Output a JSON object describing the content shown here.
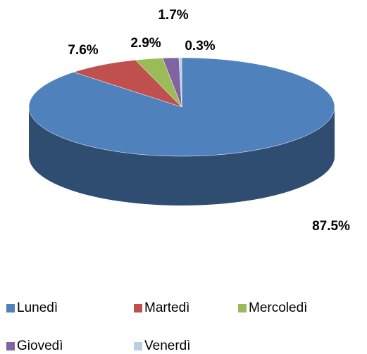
{
  "chart_data": {
    "type": "pie",
    "categories": [
      "Lunedì",
      "Martedì",
      "Mercoledì",
      "Giovedì",
      "Venerdì"
    ],
    "values": [
      87.5,
      7.6,
      2.9,
      1.7,
      0.3
    ],
    "value_labels": [
      "87.5%",
      "7.6%",
      "2.9%",
      "1.7%",
      "0.3%"
    ],
    "colors": [
      "#4f81bd",
      "#c0504d",
      "#9bbb59",
      "#8064a2",
      "#b9cde5"
    ],
    "legend": "bottom"
  }
}
